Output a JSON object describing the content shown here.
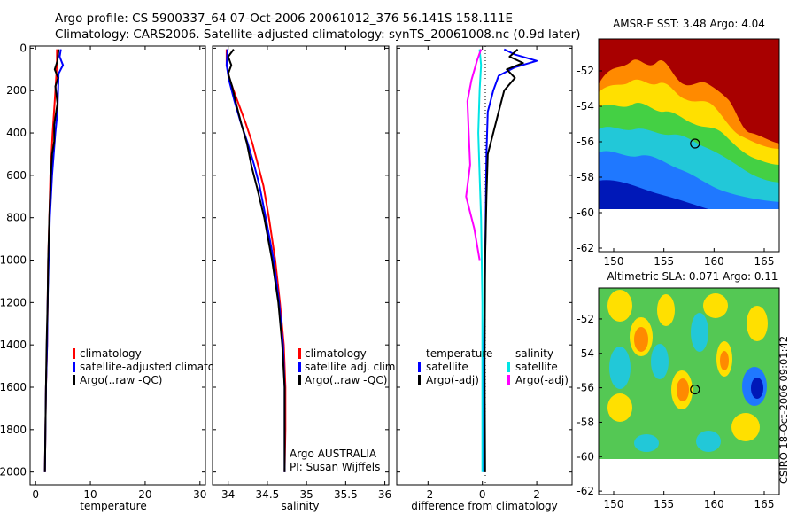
{
  "header": {
    "line1": "Argo profile: CS 5900337_64 07-Oct-2006 20061012_376 56.141S 158.111E",
    "line2": "Climatology: CARS2006. Satellite-adjusted climatology: synTS_20061008.nc (0.9d later)"
  },
  "footer_text": "CSIRO 18-Oct-2006 09:01:42",
  "colors": {
    "climatology": "#ff0000",
    "satellite": "#0000ff",
    "argo": "#000000",
    "sat_diff_salt": "#00e5e5",
    "argo_diff_salt": "#ff00ff"
  },
  "chart_data": [
    {
      "type": "line",
      "xlabel": "temperature",
      "ylabel": "",
      "xlim": [
        -1,
        31
      ],
      "ylim": [
        2060,
        -10
      ],
      "xticks": [
        "0",
        "10",
        "20",
        "30"
      ],
      "yticks": [
        "0",
        "200",
        "400",
        "600",
        "800",
        "1000",
        "1200",
        "1400",
        "1600",
        "1800",
        "2000"
      ],
      "legend": [
        "climatology",
        "satellite-adjusted climatology",
        "Argo(..raw -QC)"
      ],
      "legend_position": "lower-right",
      "series": [
        {
          "name": "climatology",
          "color": "#ff0000",
          "points": [
            [
              3.9,
              5
            ],
            [
              3.9,
              60
            ],
            [
              3.8,
              120
            ],
            [
              3.5,
              250
            ],
            [
              3.1,
              400
            ],
            [
              2.7,
              600
            ],
            [
              2.5,
              800
            ],
            [
              2.3,
              1000
            ],
            [
              2.2,
              1200
            ],
            [
              2.1,
              1400
            ],
            [
              1.9,
              1600
            ],
            [
              1.8,
              1800
            ],
            [
              1.7,
              2000
            ]
          ]
        },
        {
          "name": "satellite-adjusted climatology",
          "color": "#0000ff",
          "points": [
            [
              4.6,
              5
            ],
            [
              4.4,
              40
            ],
            [
              5.0,
              80
            ],
            [
              4.2,
              120
            ],
            [
              4.1,
              200
            ],
            [
              4.0,
              300
            ],
            [
              3.6,
              400
            ],
            [
              3.0,
              600
            ],
            [
              2.6,
              800
            ],
            [
              2.4,
              1000
            ],
            [
              2.2,
              1200
            ],
            [
              2.1,
              1400
            ],
            [
              1.9,
              1600
            ],
            [
              1.8,
              1800
            ],
            [
              1.7,
              2000
            ]
          ]
        },
        {
          "name": "Argo(..raw -QC)",
          "color": "#000000",
          "points": [
            [
              4.2,
              5
            ],
            [
              4.0,
              60
            ],
            [
              3.5,
              100
            ],
            [
              4.1,
              140
            ],
            [
              3.6,
              180
            ],
            [
              4.0,
              260
            ],
            [
              3.4,
              360
            ],
            [
              3.4,
              440
            ],
            [
              3.0,
              500
            ],
            [
              2.8,
              600
            ],
            [
              2.5,
              800
            ],
            [
              2.3,
              1000
            ],
            [
              2.2,
              1200
            ],
            [
              2.0,
              1400
            ],
            [
              1.9,
              1600
            ],
            [
              1.8,
              1800
            ],
            [
              1.7,
              2000
            ]
          ]
        }
      ]
    },
    {
      "type": "line",
      "xlabel": "salinity",
      "ylabel": "",
      "xlim": [
        33.8,
        36.05
      ],
      "ylim": [
        2060,
        -10
      ],
      "xticks": [
        "34",
        "34.5",
        "35",
        "35.5",
        "36"
      ],
      "yticks": [],
      "legend": [
        "climatology",
        "satellite adj. clim.",
        "Argo(..raw -QC)"
      ],
      "legend_position": "lower-right",
      "annotations": [
        "Argo AUSTRALIA",
        "PI: Susan Wijffels"
      ],
      "series": [
        {
          "name": "climatology",
          "color": "#ff0000",
          "points": [
            [
              33.98,
              5
            ],
            [
              33.98,
              80
            ],
            [
              34.02,
              150
            ],
            [
              34.12,
              250
            ],
            [
              34.22,
              350
            ],
            [
              34.31,
              450
            ],
            [
              34.38,
              550
            ],
            [
              34.45,
              650
            ],
            [
              34.52,
              800
            ],
            [
              34.6,
              1000
            ],
            [
              34.66,
              1200
            ],
            [
              34.71,
              1400
            ],
            [
              34.73,
              1600
            ],
            [
              34.73,
              1800
            ],
            [
              34.72,
              2000
            ]
          ]
        },
        {
          "name": "satellite adj. clim.",
          "color": "#0000ff",
          "points": [
            [
              33.99,
              5
            ],
            [
              33.98,
              80
            ],
            [
              34.01,
              150
            ],
            [
              34.08,
              250
            ],
            [
              34.16,
              350
            ],
            [
              34.25,
              450
            ],
            [
              34.33,
              550
            ],
            [
              34.4,
              650
            ],
            [
              34.48,
              800
            ],
            [
              34.58,
              1000
            ],
            [
              34.65,
              1200
            ],
            [
              34.7,
              1400
            ],
            [
              34.72,
              1600
            ],
            [
              34.72,
              1800
            ],
            [
              34.72,
              2000
            ]
          ]
        },
        {
          "name": "Argo(..raw -QC)",
          "color": "#000000",
          "points": [
            [
              34.07,
              5
            ],
            [
              34.0,
              40
            ],
            [
              34.04,
              80
            ],
            [
              34.0,
              120
            ],
            [
              34.05,
              180
            ],
            [
              34.1,
              260
            ],
            [
              34.17,
              360
            ],
            [
              34.24,
              450
            ],
            [
              34.3,
              560
            ],
            [
              34.37,
              660
            ],
            [
              34.46,
              800
            ],
            [
              34.56,
              1000
            ],
            [
              34.64,
              1200
            ],
            [
              34.69,
              1400
            ],
            [
              34.72,
              1600
            ],
            [
              34.72,
              1800
            ],
            [
              34.72,
              2000
            ]
          ]
        }
      ]
    },
    {
      "type": "line",
      "xlabel": "difference from climatology",
      "ylabel": "",
      "xlim": [
        -3.15,
        3.3
      ],
      "ylim": [
        2060,
        -10
      ],
      "xticks": [
        "-2",
        "0",
        "2"
      ],
      "yticks": [],
      "legend": [
        "temperature",
        "satellite",
        "Argo(-adj)",
        "salinity",
        "satellite",
        "Argo(-adj)"
      ],
      "legend_position": "lower-center",
      "series": [
        {
          "name": "temperature satellite",
          "color": "#0000ff",
          "points": [
            [
              0.8,
              5
            ],
            [
              1.2,
              30
            ],
            [
              2.0,
              60
            ],
            [
              1.2,
              90
            ],
            [
              0.6,
              130
            ],
            [
              0.4,
              200
            ],
            [
              0.2,
              300
            ],
            [
              0.15,
              500
            ],
            [
              0.12,
              800
            ],
            [
              0.1,
              1000
            ],
            [
              0.05,
              1500
            ],
            [
              0.05,
              2000
            ]
          ]
        },
        {
          "name": "temperature Argo(-adj)",
          "color": "#000000",
          "points": [
            [
              1.3,
              5
            ],
            [
              1.0,
              40
            ],
            [
              1.5,
              70
            ],
            [
              0.9,
              100
            ],
            [
              1.2,
              140
            ],
            [
              0.8,
              200
            ],
            [
              0.6,
              300
            ],
            [
              0.4,
              400
            ],
            [
              0.2,
              500
            ],
            [
              0.15,
              700
            ],
            [
              0.1,
              1000
            ],
            [
              0.08,
              1500
            ],
            [
              0.1,
              2000
            ]
          ]
        },
        {
          "name": "salinity satellite",
          "color": "#00e5e5",
          "points": [
            [
              -0.1,
              5
            ],
            [
              -0.05,
              80
            ],
            [
              -0.1,
              200
            ],
            [
              -0.15,
              400
            ],
            [
              -0.1,
              600
            ],
            [
              -0.05,
              800
            ],
            [
              0.0,
              1200
            ],
            [
              0.0,
              1600
            ],
            [
              0.0,
              2000
            ]
          ]
        },
        {
          "name": "salinity Argo(-adj)",
          "color": "#ff00ff",
          "points": [
            [
              -0.05,
              5
            ],
            [
              -0.2,
              60
            ],
            [
              -0.4,
              150
            ],
            [
              -0.55,
              250
            ],
            [
              -0.5,
              400
            ],
            [
              -0.45,
              550
            ],
            [
              -0.6,
              700
            ],
            [
              -0.3,
              850
            ],
            [
              -0.1,
              1000
            ]
          ]
        }
      ]
    },
    {
      "type": "heatmap",
      "title": "AMSR-E SST: 3.48  Argo: 4.04",
      "xlim": [
        148.5,
        166.5
      ],
      "ylim": [
        -62.2,
        -50.2
      ],
      "xticks": [
        "150",
        "155",
        "160",
        "165"
      ],
      "yticks": [
        "-52",
        "-54",
        "-56",
        "-58",
        "-60",
        "-62"
      ],
      "marker": {
        "lon": 158.1,
        "lat": -56.1
      }
    },
    {
      "type": "heatmap",
      "title": "Altimetric SLA: 0.071  Argo: 0.11",
      "xlim": [
        148.5,
        166.5
      ],
      "ylim": [
        -62.2,
        -50.2
      ],
      "xticks": [
        "150",
        "155",
        "160",
        "165"
      ],
      "yticks": [
        "-52",
        "-54",
        "-56",
        "-58",
        "-60",
        "-62"
      ],
      "marker": {
        "lon": 158.1,
        "lat": -56.1
      }
    }
  ]
}
